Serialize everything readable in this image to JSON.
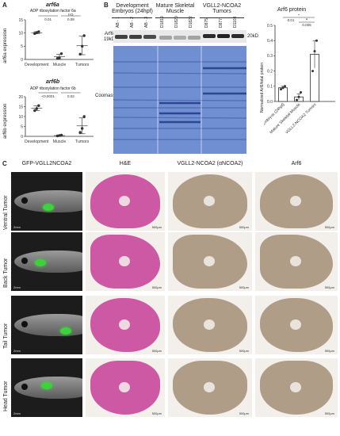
{
  "panels": {
    "a": "A",
    "b": "B",
    "c": "C"
  },
  "panelA": {
    "plots": [
      {
        "title": "arf6a",
        "subtitle": "ADP ribosylation factor 6a",
        "ylabel": "arf6a expression",
        "sig": [
          {
            "star": "*",
            "p": "0.01"
          },
          {
            "star": "ns",
            "p": "0.08"
          }
        ]
      },
      {
        "title": "arf6b",
        "subtitle": "ADP ribosylation factor 6b",
        "ylabel": "arf6b expression",
        "sig": [
          {
            "star": "*",
            "p": "<0.0001"
          },
          {
            "star": "*",
            "p": "0.03"
          }
        ]
      }
    ]
  },
  "panelB": {
    "groups": [
      "Development Embryos (24hpf)",
      "Mature Skeletal Muscle",
      "VGLL2-NCOA2 Tumors"
    ],
    "lanes": [
      "AB - 1",
      "AB - 2",
      "AB - 3",
      "D1819",
      "D1820",
      "D1822",
      "D875",
      "D877",
      "D1103"
    ],
    "blot_label": "Arf6",
    "blot_kd": "19kD",
    "marker": "20kD",
    "coomassie_label": "Coomassie"
  },
  "chart_data": [
    {
      "type": "scatter",
      "title": "arf6a",
      "subtitle": "ADP ribosylation factor 6a",
      "ylabel": "arf6a expression",
      "categories": [
        "Development",
        "Muscle",
        "Tumors"
      ],
      "ylim": [
        0,
        15
      ],
      "yticks": [
        0,
        5,
        10,
        15
      ],
      "series": [
        {
          "category": "Development",
          "points": [
            9.8,
            10.2,
            10.5
          ],
          "mean": 10.1,
          "sd": 0.4
        },
        {
          "category": "Muscle",
          "points": [
            0.4,
            0.6,
            2.2
          ],
          "mean": 1.0,
          "sd": 1.0
        },
        {
          "category": "Tumors",
          "points": [
            2.0,
            5.0,
            9.0
          ],
          "mean": 5.3,
          "sd": 3.5
        }
      ]
    },
    {
      "type": "scatter",
      "title": "arf6b",
      "subtitle": "ADP ribosylation factor 6b",
      "ylabel": "arf6b expression",
      "categories": [
        "Development",
        "Muscle",
        "Tumors"
      ],
      "ylim": [
        0,
        20
      ],
      "yticks": [
        0,
        5,
        10,
        15,
        20
      ],
      "series": [
        {
          "category": "Development",
          "points": [
            13.0,
            14.0,
            15.5
          ],
          "mean": 14.2,
          "sd": 1.2
        },
        {
          "category": "Muscle",
          "points": [
            0.2,
            0.4,
            0.6
          ],
          "mean": 0.4,
          "sd": 0.2
        },
        {
          "category": "Tumors",
          "points": [
            2.0,
            4.0,
            10.0
          ],
          "mean": 5.3,
          "sd": 4.0
        }
      ]
    },
    {
      "type": "bar",
      "title": "Arf6 protein",
      "ylabel": "Normalized Arf6/total protein",
      "categories": [
        "Embryos (24hpf)",
        "Mature Skeletal Muscle",
        "VGLL2-NCOA2 Tumors"
      ],
      "values": [
        0.09,
        0.03,
        0.31
      ],
      "errors": [
        0.01,
        0.02,
        0.09
      ],
      "points": [
        [
          0.08,
          0.09,
          0.1
        ],
        [
          0.01,
          0.03,
          0.06
        ],
        [
          0.2,
          0.33,
          0.4
        ]
      ],
      "ylim": [
        0,
        0.5
      ],
      "yticks": [
        0.0,
        0.1,
        0.2,
        0.3,
        0.4,
        0.5
      ],
      "sig": [
        {
          "star": "*",
          "p": "0.01"
        },
        {
          "star": "*",
          "p": "0.005"
        }
      ]
    }
  ],
  "panelC": {
    "columns": [
      "GFP-VGLL2NCOA2",
      "H&E",
      "VGLL2-NCOA2 (αNCOA2)",
      "Arf6"
    ],
    "rows": [
      "Ventral Tumor",
      "Back Tumor",
      "Tail Tumor",
      "Head Tumor"
    ],
    "scale_fish": "2mm",
    "scale_tissue": "500μm"
  },
  "colors": {
    "gel": "#6f8fd2",
    "he": "#c9479b",
    "ihc": "#9a8266",
    "fish_bg": "#1c1c1c",
    "gfp": "#3cd23c"
  }
}
